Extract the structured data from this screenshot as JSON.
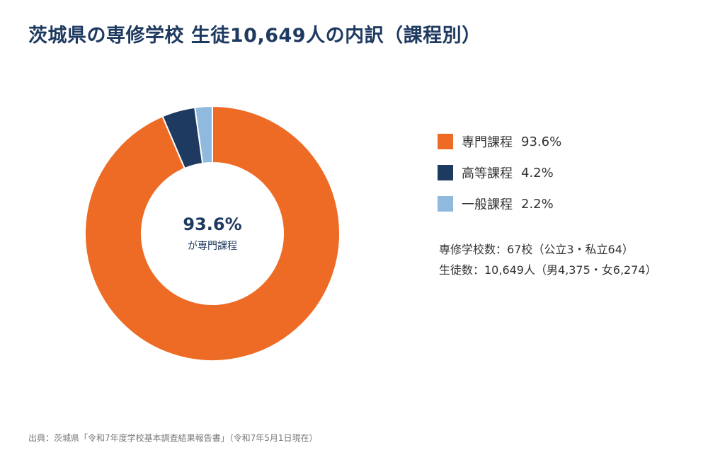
{
  "title": "茨城県の専修学校 生徒10,649人の内訳（課程別）",
  "chart_data": {
    "type": "pie",
    "donut": true,
    "categories": [
      "専門課程",
      "高等課程",
      "一般課程"
    ],
    "values": [
      93.6,
      4.2,
      2.2
    ],
    "value_labels": [
      "93.6%",
      "4.2%",
      "2.2%"
    ],
    "colors": [
      "#ee6b26",
      "#1f3a60",
      "#8fb9dd"
    ],
    "center_value": "93.6%",
    "center_caption": "が専門課程",
    "legend_position": "right"
  },
  "summary": {
    "schools": "専修学校数：67校（公立3・私立64）",
    "students": "生徒数：10,649人（男4,375・女6,274）"
  },
  "source": "出典：茨城県「令和7年度学校基本調査結果報告書」（令和7年5月1日現在）"
}
